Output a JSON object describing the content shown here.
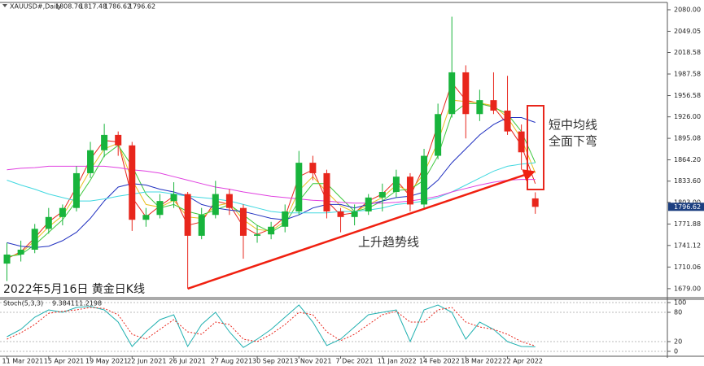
{
  "chart_data": [
    {
      "type": "candlestick",
      "title": "XAUUSD#,Daily",
      "caption": "2022年5月16日 黄金日K线",
      "annotations": [
        "短中均线",
        "全面下弯",
        "上升趋势线"
      ],
      "categories": [
        "11 Mar 2021",
        null,
        null,
        "15 Apr 2021",
        null,
        null,
        "19 May 2021",
        null,
        null,
        "22 Jun 2021",
        null,
        null,
        "26 Jul 2021",
        null,
        null,
        "27 Aug 2021",
        null,
        null,
        "30 Sep 2021",
        null,
        null,
        "3 Nov 2021",
        null,
        null,
        "7 Dec 2021",
        null,
        null,
        "11 Jan 2022",
        null,
        null,
        "14 Feb 2022",
        null,
        null,
        "18 Mar 2022",
        null,
        null,
        "22 Apr 2022",
        null,
        null
      ],
      "xlim": [
        -0.5,
        47.5
      ],
      "ylim": [
        1666,
        2090.5
      ],
      "yticks": [
        {
          "value": 2080,
          "label": "2080.00"
        },
        2049.05,
        2018.58,
        1987.58,
        1956.58,
        {
          "value": 1926,
          "label": "1926.00"
        },
        1895.08,
        {
          "value": 1864.2,
          "label": "1864.20"
        },
        {
          "value": 1833.6,
          "label": "1833.60"
        },
        {
          "value": 1803,
          "label": "1803.00"
        },
        1771.88,
        1741.12,
        1710.06,
        {
          "value": 1679,
          "label": "1679.00"
        }
      ],
      "up_color": "#18b43c",
      "down_color": "#e8261c",
      "open": [
        1715,
        1728,
        1735,
        1765,
        1782,
        1795,
        1845,
        1878,
        1900,
        1885,
        1778,
        1785,
        1805,
        1815,
        1755,
        1785,
        1815,
        1795,
        1755,
        1757,
        1768,
        1790,
        1860,
        1845,
        1790,
        1782,
        1790,
        1810,
        1818,
        1840,
        1800,
        1870,
        1930,
        1990,
        1930,
        1950,
        1935,
        1905,
        1808.76
      ],
      "high": [
        1745,
        1748,
        1772,
        1795,
        1800,
        1855,
        1890,
        1916,
        1905,
        1890,
        1795,
        1815,
        1832,
        1818,
        1795,
        1834,
        1822,
        1800,
        1770,
        1775,
        1800,
        1877,
        1870,
        1850,
        1795,
        1800,
        1815,
        1830,
        1850,
        1845,
        1880,
        1945,
        2070,
        2000,
        1965,
        1990,
        1985,
        1915,
        1817.48
      ],
      "low": [
        1690,
        1718,
        1730,
        1758,
        1770,
        1790,
        1838,
        1868,
        1870,
        1762,
        1768,
        1780,
        1795,
        1679,
        1750,
        1780,
        1785,
        1722,
        1745,
        1750,
        1760,
        1785,
        1835,
        1780,
        1760,
        1770,
        1785,
        1790,
        1810,
        1790,
        1795,
        1865,
        1925,
        1895,
        1920,
        1930,
        1900,
        1850,
        1786.62
      ],
      "close": [
        1728,
        1735,
        1765,
        1782,
        1795,
        1845,
        1878,
        1900,
        1885,
        1778,
        1785,
        1805,
        1815,
        1755,
        1785,
        1815,
        1795,
        1755,
        1757,
        1768,
        1790,
        1860,
        1845,
        1790,
        1782,
        1790,
        1810,
        1818,
        1840,
        1800,
        1870,
        1930,
        1990,
        1930,
        1950,
        1935,
        1905,
        1875,
        1796.62
      ],
      "series": [
        {
          "color": "#e8261c",
          "values": [
            1722,
            1732,
            1752,
            1775,
            1790,
            1825,
            1865,
            1892,
            1890,
            1810,
            1782,
            1798,
            1812,
            1770,
            1775,
            1805,
            1800,
            1768,
            1757,
            1765,
            1782,
            1840,
            1850,
            1805,
            1785,
            1788,
            1805,
            1815,
            1835,
            1812,
            1855,
            1915,
            1975,
            1950,
            1945,
            1940,
            1915,
            1885,
            1830
          ]
        },
        {
          "color": "#e8c020",
          "values": [
            1724,
            1730,
            1748,
            1768,
            1784,
            1815,
            1850,
            1880,
            1888,
            1835,
            1800,
            1796,
            1806,
            1782,
            1780,
            1798,
            1802,
            1778,
            1764,
            1762,
            1776,
            1820,
            1840,
            1818,
            1798,
            1789,
            1800,
            1810,
            1828,
            1818,
            1845,
            1890,
            1950,
            1948,
            1946,
            1942,
            1925,
            1895,
            1845
          ]
        },
        {
          "color": "#3cc83c",
          "values": [
            1725,
            1728,
            1742,
            1760,
            1778,
            1805,
            1835,
            1870,
            1885,
            1855,
            1815,
            1795,
            1800,
            1790,
            1785,
            1792,
            1800,
            1785,
            1770,
            1760,
            1772,
            1805,
            1830,
            1830,
            1810,
            1790,
            1795,
            1805,
            1820,
            1822,
            1835,
            1870,
            1930,
            1945,
            1945,
            1940,
            1930,
            1905,
            1860
          ]
        },
        {
          "color": "#2030c0",
          "values": [
            1745,
            1740,
            1738,
            1740,
            1748,
            1760,
            1780,
            1805,
            1825,
            1830,
            1828,
            1822,
            1818,
            1812,
            1800,
            1795,
            1792,
            1790,
            1785,
            1780,
            1778,
            1785,
            1795,
            1800,
            1800,
            1795,
            1800,
            1805,
            1810,
            1812,
            1818,
            1835,
            1860,
            1880,
            1900,
            1915,
            1925,
            1925,
            1918
          ]
        },
        {
          "color": "#40d8e0",
          "values": [
            1835,
            1828,
            1822,
            1815,
            1810,
            1805,
            1805,
            1808,
            1812,
            1815,
            1818,
            1818,
            1815,
            1812,
            1810,
            1808,
            1805,
            1800,
            1795,
            1790,
            1788,
            1788,
            1788,
            1788,
            1790,
            1790,
            1792,
            1795,
            1800,
            1802,
            1805,
            1810,
            1818,
            1828,
            1838,
            1848,
            1855,
            1858,
            1860
          ]
        },
        {
          "color": "#e040e0",
          "values": [
            1850,
            1852,
            1853,
            1855,
            1855,
            1855,
            1855,
            1855,
            1853,
            1850,
            1848,
            1845,
            1840,
            1835,
            1830,
            1825,
            1822,
            1818,
            1815,
            1812,
            1810,
            1808,
            1806,
            1805,
            1803,
            1802,
            1802,
            1802,
            1803,
            1805,
            1808,
            1812,
            1818,
            1823,
            1828,
            1832,
            1835,
            1836,
            1836
          ]
        }
      ],
      "trendline": {
        "color": "#f02010",
        "from": [
          13,
          1679
        ],
        "to": [
          37.6,
          1845
        ]
      }
    },
    {
      "type": "stochastic",
      "title": "Stoch(5,3,3)",
      "ylim": [
        -5,
        105
      ],
      "yticks": [
        100,
        80,
        20,
        0
      ],
      "series": [
        {
          "color": "#20b0b0",
          "values": [
            30,
            45,
            70,
            85,
            80,
            90,
            92,
            85,
            60,
            10,
            40,
            65,
            75,
            10,
            55,
            80,
            40,
            8,
            25,
            45,
            70,
            95,
            60,
            12,
            25,
            50,
            75,
            80,
            85,
            20,
            85,
            95,
            80,
            25,
            60,
            45,
            20,
            10,
            9.3841
          ]
        },
        {
          "color": "#e8261c",
          "dashed": true,
          "values": [
            25,
            38,
            55,
            78,
            82,
            85,
            90,
            88,
            75,
            35,
            25,
            45,
            65,
            40,
            35,
            60,
            55,
            25,
            20,
            35,
            55,
            80,
            75,
            40,
            22,
            35,
            55,
            75,
            82,
            60,
            60,
            85,
            90,
            60,
            50,
            45,
            35,
            20,
            11.2198
          ]
        }
      ]
    }
  ]
}
